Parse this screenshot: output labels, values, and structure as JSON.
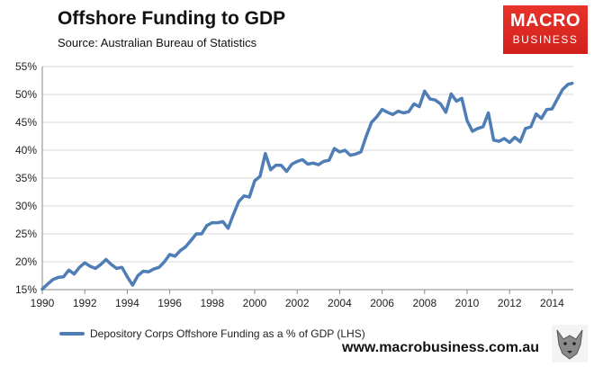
{
  "header": {
    "title": "Offshore Funding to GDP",
    "source": "Source:  Australian Bureau of Statistics"
  },
  "logo": {
    "top": "MACRO",
    "bottom": "BUSINESS",
    "bg_color": "#e02a24"
  },
  "footer": {
    "website": "www.macrobusiness.com.au"
  },
  "chart_data": {
    "type": "line",
    "title": "Offshore Funding to GDP",
    "xlim": [
      1990,
      2015
    ],
    "ylim": [
      15,
      55
    ],
    "xticks": [
      1990,
      1992,
      1994,
      1996,
      1998,
      2000,
      2002,
      2004,
      2006,
      2008,
      2010,
      2012,
      2014
    ],
    "yticks": [
      15,
      20,
      25,
      30,
      35,
      40,
      45,
      50,
      55
    ],
    "xtick_labels": [
      "1990",
      "1992",
      "1994",
      "1996",
      "1998",
      "2000",
      "2002",
      "2004",
      "2006",
      "2008",
      "2010",
      "2012",
      "2014"
    ],
    "ytick_labels": [
      "15%",
      "20%",
      "25%",
      "30%",
      "35%",
      "40%",
      "45%",
      "50%",
      "55%"
    ],
    "grid": "horizontal",
    "legend_position": "bottom-left",
    "series": [
      {
        "name": "Depository Corps Offshore Funding as a % of GDP (LHS)",
        "color": "#4f7db5",
        "x": [
          1990.0,
          1990.25,
          1990.5,
          1990.75,
          1991.0,
          1991.25,
          1991.5,
          1991.75,
          1992.0,
          1992.25,
          1992.5,
          1992.75,
          1993.0,
          1993.25,
          1993.5,
          1993.75,
          1994.0,
          1994.25,
          1994.5,
          1994.75,
          1995.0,
          1995.25,
          1995.5,
          1995.75,
          1996.0,
          1996.25,
          1996.5,
          1996.75,
          1997.0,
          1997.25,
          1997.5,
          1997.75,
          1998.0,
          1998.25,
          1998.5,
          1998.75,
          1999.0,
          1999.25,
          1999.5,
          1999.75,
          2000.0,
          2000.25,
          2000.5,
          2000.75,
          2001.0,
          2001.25,
          2001.5,
          2001.75,
          2002.0,
          2002.25,
          2002.5,
          2002.75,
          2003.0,
          2003.25,
          2003.5,
          2003.75,
          2004.0,
          2004.25,
          2004.5,
          2004.75,
          2005.0,
          2005.25,
          2005.5,
          2005.75,
          2006.0,
          2006.25,
          2006.5,
          2006.75,
          2007.0,
          2007.25,
          2007.5,
          2007.75,
          2008.0,
          2008.25,
          2008.5,
          2008.75,
          2009.0,
          2009.25,
          2009.5,
          2009.75,
          2010.0,
          2010.25,
          2010.5,
          2010.75,
          2011.0,
          2011.25,
          2011.5,
          2011.75,
          2012.0,
          2012.25,
          2012.5,
          2012.75,
          2013.0,
          2013.25,
          2013.5,
          2013.75,
          2014.0,
          2014.25,
          2014.5,
          2014.75,
          2014.95
        ],
        "values": [
          15.1,
          16.0,
          16.8,
          17.2,
          17.3,
          18.5,
          17.8,
          19.0,
          19.8,
          19.2,
          18.8,
          19.5,
          20.4,
          19.5,
          18.8,
          19.0,
          17.3,
          15.8,
          17.5,
          18.3,
          18.2,
          18.7,
          19.0,
          20.0,
          21.3,
          21.0,
          22.0,
          22.7,
          23.8,
          25.0,
          25.0,
          26.5,
          27.0,
          27.0,
          27.2,
          26.0,
          28.5,
          30.8,
          31.8,
          31.6,
          34.5,
          35.3,
          39.4,
          36.5,
          37.3,
          37.3,
          36.2,
          37.5,
          38.0,
          38.3,
          37.5,
          37.7,
          37.4,
          38.0,
          38.2,
          40.3,
          39.7,
          40.0,
          39.1,
          39.3,
          39.7,
          42.5,
          45.0,
          46.0,
          47.3,
          46.8,
          46.4,
          47.0,
          46.7,
          46.9,
          48.3,
          47.8,
          50.6,
          49.2,
          49.0,
          48.3,
          46.8,
          50.1,
          48.8,
          49.3,
          45.3,
          43.4,
          43.9,
          44.2,
          46.7,
          41.8,
          41.6,
          42.1,
          41.4,
          42.3,
          41.5,
          43.9,
          44.2,
          46.5,
          45.7,
          47.3,
          47.4,
          49.2,
          50.9,
          51.8,
          52.0
        ]
      }
    ]
  }
}
